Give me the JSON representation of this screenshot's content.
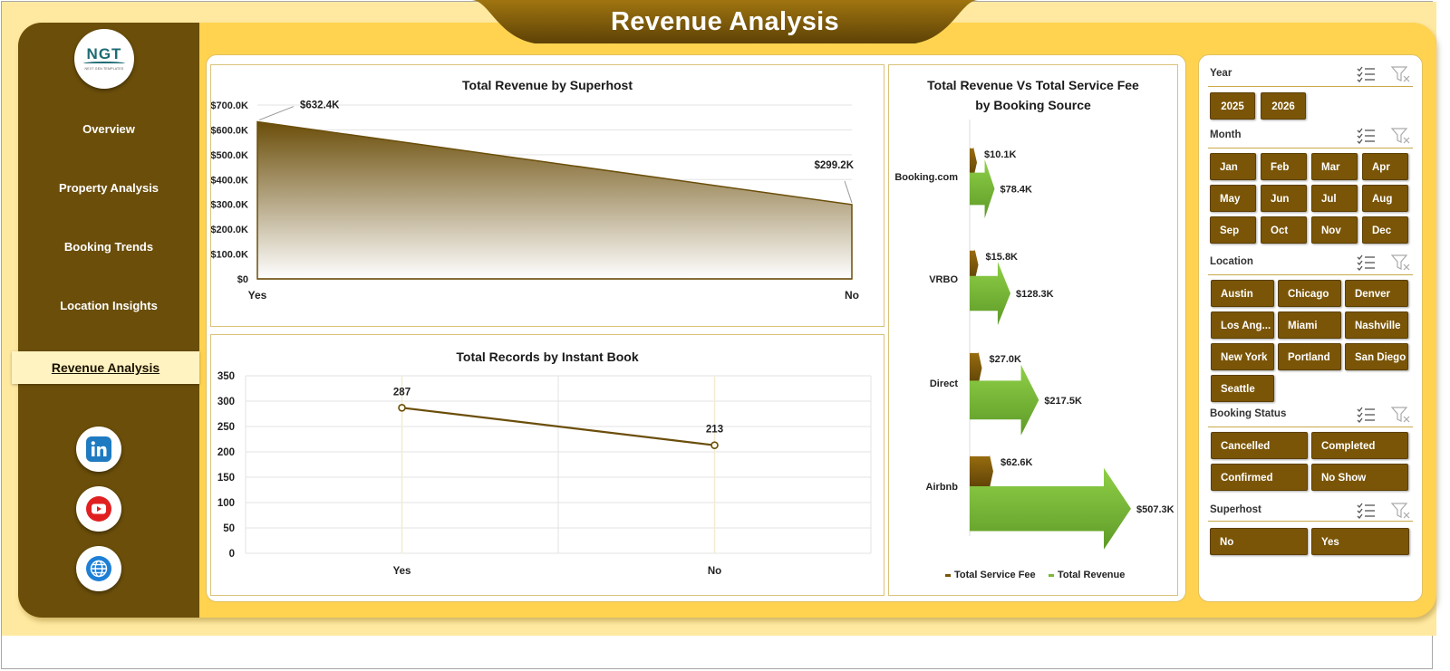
{
  "app": {
    "title": "Revenue Analysis"
  },
  "logo": {
    "text": "NGT",
    "subtext": "NEXT GEN TEMPLATES"
  },
  "sidebar": {
    "items": [
      {
        "label": "Overview"
      },
      {
        "label": "Property Analysis"
      },
      {
        "label": "Booking Trends"
      },
      {
        "label": "Location Insights"
      },
      {
        "label": "Revenue Analysis",
        "active": true
      }
    ],
    "social": [
      {
        "icon": "linkedin-icon",
        "color": "#1f7bc1"
      },
      {
        "icon": "youtube-icon",
        "color": "#e02020"
      },
      {
        "icon": "globe-icon",
        "color": "#1e7fd6"
      }
    ]
  },
  "colors": {
    "brown": "#6b4e0a",
    "gold": "#ffd34f",
    "green": "#7ab73a",
    "button": "#7a5507"
  },
  "chart_data": [
    {
      "type": "area",
      "title": "Total Revenue  by Superhost",
      "categories": [
        "Yes",
        "No"
      ],
      "values": [
        632.4,
        299.2
      ],
      "data_labels": [
        "$632.4K",
        "$299.2K"
      ],
      "y_ticks": [
        "$0",
        "$100.0K",
        "$200.0K",
        "$300.0K",
        "$400.0K",
        "$500.0K",
        "$600.0K",
        "$700.0K"
      ],
      "ylim": [
        0,
        700
      ],
      "grid": true
    },
    {
      "type": "line",
      "title": "Total Records by Instant Book",
      "categories": [
        "Yes",
        "No"
      ],
      "values": [
        287,
        213
      ],
      "data_labels": [
        "287",
        "213"
      ],
      "y_ticks": [
        "0",
        "50",
        "100",
        "150",
        "200",
        "250",
        "300",
        "350"
      ],
      "ylim": [
        0,
        350
      ],
      "grid": true
    },
    {
      "type": "bar",
      "orientation": "horizontal",
      "title_line1": "Total Revenue Vs Total Service Fee",
      "title_line2": "by Booking Source",
      "categories": [
        "Booking.com",
        "VRBO",
        "Direct",
        "Airbnb"
      ],
      "series": [
        {
          "name": "Total Service Fee",
          "values": [
            10.1,
            15.8,
            27.0,
            62.6
          ],
          "labels": [
            "$10.1K",
            "$15.8K",
            "$27.0K",
            "$62.6K"
          ],
          "color": "#7a5507"
        },
        {
          "name": "Total Revenue",
          "values": [
            78.4,
            128.3,
            217.5,
            507.3
          ],
          "labels": [
            "$78.4K",
            "$128.3K",
            "$217.5K",
            "$507.3K"
          ],
          "color": "#7ab73a"
        }
      ],
      "legend": "bottom"
    }
  ],
  "slicers": [
    {
      "title": "Year",
      "items": [
        "2025",
        "2026"
      ]
    },
    {
      "title": "Month",
      "items": [
        "Jan",
        "Feb",
        "Mar",
        "Apr",
        "May",
        "Jun",
        "Jul",
        "Aug",
        "Sep",
        "Oct",
        "Nov",
        "Dec"
      ]
    },
    {
      "title": "Location",
      "items": [
        "Austin",
        "Chicago",
        "Denver",
        "Los Ang...",
        "Miami",
        "Nashville",
        "New York",
        "Portland",
        "San Diego",
        "Seattle"
      ]
    },
    {
      "title": "Booking Status",
      "items": [
        "Cancelled",
        "Completed",
        "Confirmed",
        "No Show"
      ]
    },
    {
      "title": "Superhost",
      "items": [
        "No",
        "Yes"
      ]
    }
  ]
}
